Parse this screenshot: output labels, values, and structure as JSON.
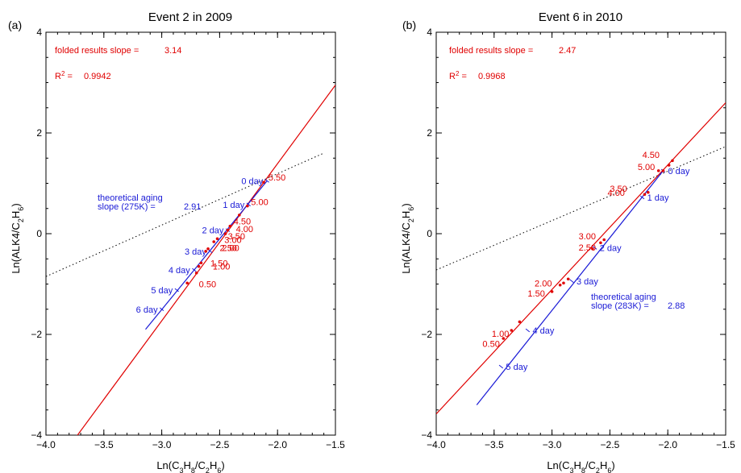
{
  "chart_data": [
    {
      "type": "scatter",
      "panel_label": "(a)",
      "title": "Event 2 in 2009",
      "xlabel": "Ln(C3H8/C2H6)",
      "ylabel": "Ln(ALK4/C2H6)",
      "xlim": [
        -4.0,
        -1.5
      ],
      "ylim": [
        -4,
        4
      ],
      "x_ticks": [
        "−4.0",
        "−3.5",
        "−3.0",
        "−2.5",
        "−2.0",
        "−1.5"
      ],
      "y_ticks": [
        "−4",
        "−2",
        "0",
        "2",
        "4"
      ],
      "folded_label": "folded results slope =",
      "folded_slope": "3.14",
      "r2_label": "R",
      "r2_sup": "2",
      "r2_eq": " =",
      "r2_value": "0.9942",
      "theory_text_line1": "theoretical aging",
      "theory_text_line2": "slope (275K) =",
      "theory_slope": "2.91",
      "series": [
        {
          "kind": "observed",
          "color": "#e00000",
          "points": [
            [
              -2.12,
              1.02
            ],
            [
              -2.26,
              0.55
            ],
            [
              -2.33,
              0.37
            ],
            [
              -2.41,
              0.15
            ],
            [
              -2.43,
              0.07
            ],
            [
              -2.45,
              0.0
            ],
            [
              -2.52,
              -0.1
            ],
            [
              -2.55,
              -0.16
            ],
            [
              -2.6,
              -0.3
            ],
            [
              -2.62,
              -0.35
            ],
            [
              -2.66,
              -0.58
            ],
            [
              -2.68,
              -0.65
            ],
            [
              -2.7,
              -0.78
            ],
            [
              -2.78,
              -0.98
            ]
          ],
          "labels": [
            {
              "text": "5.50",
              "x": -2.1,
              "y": 1.12
            },
            {
              "text": "5.00",
              "x": -2.25,
              "y": 0.63
            },
            {
              "text": "4.50",
              "x": -2.4,
              "y": 0.25
            },
            {
              "text": "4.00",
              "x": -2.38,
              "y": 0.1
            },
            {
              "text": "3.50",
              "x": -2.45,
              "y": -0.05
            },
            {
              "text": "3.00",
              "x": -2.48,
              "y": -0.12
            },
            {
              "text": "2.50",
              "x": -2.52,
              "y": -0.28
            },
            {
              "text": "2.00",
              "x": -2.5,
              "y": -0.28
            },
            {
              "text": "1.50",
              "x": -2.6,
              "y": -0.58
            },
            {
              "text": "1.00",
              "x": -2.58,
              "y": -0.65
            },
            {
              "text": "0.50",
              "x": -2.7,
              "y": -1.0
            }
          ],
          "fit_line": [
            [
              -4.0,
              -4.85
            ],
            [
              -1.5,
              2.95
            ]
          ]
        },
        {
          "kind": "theoretical",
          "color": "#1a1ad6",
          "ticks": [
            {
              "text": "0 day",
              "x": -2.09,
              "y": 1.05
            },
            {
              "text": "1 day",
              "x": -2.25,
              "y": 0.58
            },
            {
              "text": "2 day",
              "x": -2.43,
              "y": 0.07
            },
            {
              "text": "3 day",
              "x": -2.58,
              "y": -0.35
            },
            {
              "text": "4 day",
              "x": -2.72,
              "y": -0.72
            },
            {
              "text": "5 day",
              "x": -2.87,
              "y": -1.12
            },
            {
              "text": "6 day",
              "x": -3.0,
              "y": -1.5
            }
          ],
          "aging_line": [
            [
              -2.09,
              1.05
            ],
            [
              -3.14,
              -1.9
            ]
          ],
          "dotted_line": [
            [
              -4.0,
              -0.85
            ],
            [
              -1.6,
              1.6
            ]
          ]
        }
      ]
    },
    {
      "type": "scatter",
      "panel_label": "(b)",
      "title": "Event 6 in 2010",
      "xlabel": "Ln(C3H8/C2H6)",
      "ylabel": "Ln(ALK4/C2H6)",
      "xlim": [
        -4.0,
        -1.5
      ],
      "ylim": [
        -4,
        4
      ],
      "x_ticks": [
        "−4.0",
        "−3.5",
        "−3.0",
        "−2.5",
        "−2.0",
        "−1.5"
      ],
      "y_ticks": [
        "−4",
        "−2",
        "0",
        "2",
        "4"
      ],
      "folded_label": "folded results slope =",
      "folded_slope": "2.47",
      "r2_label": "R",
      "r2_sup": "2",
      "r2_eq": " =",
      "r2_value": "0.9968",
      "theory_text_line1": "theoretical aging",
      "theory_text_line2": "slope (283K) =",
      "theory_slope": "2.88",
      "series": [
        {
          "kind": "observed",
          "color": "#e00000",
          "points": [
            [
              -1.96,
              1.45
            ],
            [
              -1.99,
              1.36
            ],
            [
              -2.04,
              1.25
            ],
            [
              -2.08,
              1.25
            ],
            [
              -2.17,
              0.82
            ],
            [
              -2.2,
              0.78
            ],
            [
              -2.55,
              -0.12
            ],
            [
              -2.58,
              -0.18
            ],
            [
              -2.65,
              -0.3
            ],
            [
              -2.86,
              -0.9
            ],
            [
              -2.9,
              -0.98
            ],
            [
              -2.93,
              -1.02
            ],
            [
              -3.0,
              -1.15
            ],
            [
              -3.28,
              -1.75
            ],
            [
              -3.35,
              -1.92
            ],
            [
              -3.42,
              -2.08
            ]
          ],
          "labels": [
            {
              "text": "4.50",
              "x": -2.05,
              "y": 1.57
            },
            {
              "text": "5.00",
              "x": -2.09,
              "y": 1.33
            },
            {
              "text": "4.00",
              "x": -2.35,
              "y": 0.82
            },
            {
              "text": "3.50",
              "x": -2.33,
              "y": 0.9
            },
            {
              "text": "3.00",
              "x": -2.6,
              "y": -0.05
            },
            {
              "text": "2.50",
              "x": -2.6,
              "y": -0.27
            },
            {
              "text": "2.00",
              "x": -2.98,
              "y": -0.98
            },
            {
              "text": "1.50",
              "x": -3.04,
              "y": -1.18
            },
            {
              "text": "1.00",
              "x": -3.35,
              "y": -1.98
            },
            {
              "text": "0.50",
              "x": -3.43,
              "y": -2.18
            }
          ],
          "fit_line": [
            [
              -4.0,
              -3.58
            ],
            [
              -1.5,
              2.6
            ]
          ]
        },
        {
          "kind": "theoretical",
          "color": "#1a1ad6",
          "ticks": [
            {
              "text": "0 day",
              "x": -2.04,
              "y": 1.25
            },
            {
              "text": "1 day",
              "x": -2.22,
              "y": 0.72
            },
            {
              "text": "2 day",
              "x": -2.63,
              "y": -0.28
            },
            {
              "text": "3 day",
              "x": -2.83,
              "y": -0.94
            },
            {
              "text": "4 day",
              "x": -3.21,
              "y": -1.92
            },
            {
              "text": "5 day",
              "x": -3.44,
              "y": -2.64
            }
          ],
          "aging_line": [
            [
              -2.04,
              1.25
            ],
            [
              -3.65,
              -3.4
            ]
          ],
          "dotted_line": [
            [
              -4.0,
              -0.72
            ],
            [
              -1.5,
              1.73
            ]
          ]
        }
      ]
    }
  ]
}
